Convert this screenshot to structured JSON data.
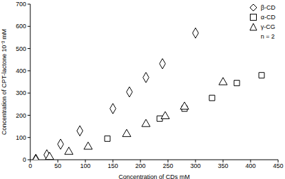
{
  "chart_data": {
    "type": "scatter",
    "xlabel": "Concentration of CDs mM",
    "ylabel": "Concentration of CPT-lactone 10⁻³ mM",
    "xlim": [
      0,
      450
    ],
    "xticks": [
      0,
      50,
      100,
      150,
      200,
      250,
      300,
      350,
      400,
      450
    ],
    "ylim": [
      0,
      700
    ],
    "yticks": [
      0,
      100,
      200,
      300,
      400,
      500,
      600,
      700
    ],
    "grid": false,
    "legend": "top-right",
    "annotations": [
      "n = 2"
    ],
    "series": [
      {
        "name": "β-CD",
        "color": "#000000",
        "marker": "diamond",
        "x": [
          10,
          30,
          55,
          90,
          150,
          180,
          210,
          240,
          300
        ],
        "values": [
          2,
          22,
          70,
          130,
          230,
          305,
          370,
          432,
          570
        ]
      },
      {
        "name": "α-CD",
        "color": "#000000",
        "marker": "square",
        "x": [
          140,
          235,
          280,
          330,
          375,
          420
        ],
        "values": [
          95,
          185,
          230,
          278,
          345,
          380
        ]
      },
      {
        "name": "γ-CG",
        "color": "#000000",
        "marker": "triangle",
        "x": [
          10,
          35,
          70,
          105,
          175,
          210,
          245,
          280,
          350
        ],
        "values": [
          0,
          12,
          35,
          58,
          115,
          160,
          195,
          238,
          348
        ]
      }
    ]
  }
}
